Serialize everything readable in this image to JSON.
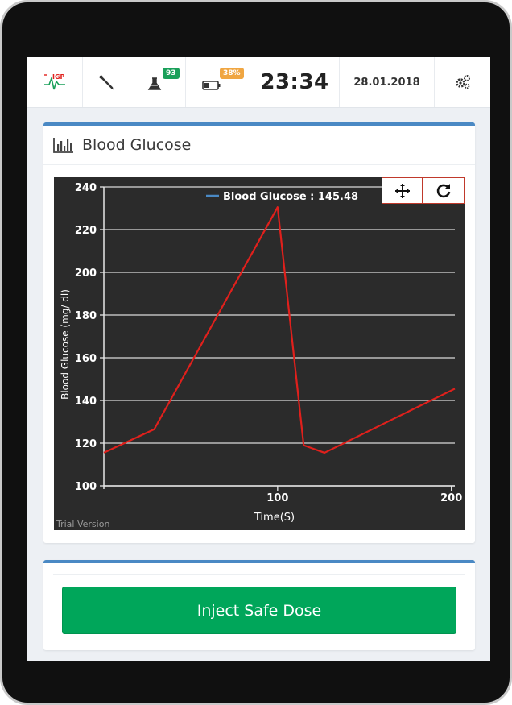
{
  "topbar": {
    "logo_text": "IGP",
    "lab_count": "93",
    "battery_level": "38%",
    "time": "23:34",
    "date": "28.01.2018",
    "icons": [
      "logo-icon",
      "syringe-icon",
      "flask-icon",
      "battery-icon",
      "settings-gears-icon"
    ]
  },
  "panel": {
    "title": "Blood Glucose",
    "icon": "bar-chart-icon"
  },
  "chart_data": {
    "type": "line",
    "legend_label": "Blood Glucose : 145.48",
    "xlabel": "Time(S)",
    "ylabel": "Blood Glucose (mg/ dl)",
    "xlim": [
      0,
      202
    ],
    "ylim": [
      100,
      240
    ],
    "x_ticks": [
      "100",
      "200"
    ],
    "y_ticks": [
      "100",
      "120",
      "140",
      "160",
      "180",
      "200",
      "220",
      "240"
    ],
    "grid": true,
    "legend_position": "top",
    "watermark": "Trial Version",
    "series": [
      {
        "name": "Blood Glucose",
        "color": "#e0201c",
        "x": [
          0,
          29,
          100,
          115,
          127,
          202
        ],
        "y": [
          115.5,
          126.5,
          230.5,
          119,
          115.5,
          145.5
        ]
      }
    ],
    "controls": [
      "pan-move-icon",
      "reset-refresh-icon"
    ]
  },
  "actions": {
    "inject_label": "Inject Safe Dose"
  },
  "colors": {
    "accent": "#4a89c4",
    "button": "#00a65a",
    "line": "#e0201c"
  }
}
